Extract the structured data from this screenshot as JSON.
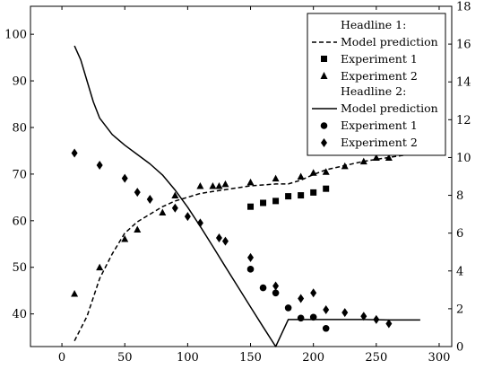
{
  "chart_data": {
    "type": "scatter",
    "title": "",
    "xlabel": "",
    "ylabel": "",
    "y2label": "",
    "xlim": [
      -25,
      310
    ],
    "ylim": [
      33,
      106
    ],
    "y2lim": [
      0,
      18
    ],
    "xticks": [
      0,
      50,
      100,
      150,
      200,
      250,
      300
    ],
    "yticks": [
      40,
      50,
      60,
      70,
      80,
      90,
      100
    ],
    "y2ticks": [
      0,
      2,
      4,
      6,
      8,
      10,
      12,
      14,
      16,
      18
    ],
    "grid": false,
    "legend_position": "top-right",
    "legend": [
      {
        "kind": "heading",
        "label": "Headline 1:"
      },
      {
        "kind": "dashed-line",
        "label": "Model prediction"
      },
      {
        "kind": "square",
        "label": "Experiment 1"
      },
      {
        "kind": "triangle",
        "label": "Experiment 2"
      },
      {
        "kind": "heading",
        "label": "Headline 2:"
      },
      {
        "kind": "solid-line",
        "label": "Model prediction"
      },
      {
        "kind": "circle",
        "label": "Experiment 1"
      },
      {
        "kind": "diamond",
        "label": "Experiment 2"
      }
    ],
    "series": [
      {
        "group": "Headline 1",
        "name": "Model prediction",
        "style": "dashed-line",
        "axis": "right",
        "x": [
          10,
          20,
          30,
          40,
          50,
          60,
          70,
          80,
          90,
          100,
          110,
          120,
          130,
          140,
          150,
          160,
          170,
          180,
          190,
          200,
          210,
          220,
          230,
          240,
          250,
          260,
          270,
          280,
          285
        ],
        "y": [
          0.3,
          1.6,
          3.6,
          4.9,
          6.0,
          6.6,
          7.0,
          7.4,
          7.7,
          7.9,
          8.1,
          8.2,
          8.3,
          8.4,
          8.5,
          8.55,
          8.6,
          8.6,
          8.8,
          9.1,
          9.35,
          9.5,
          9.65,
          9.8,
          9.9,
          10.0,
          10.1,
          10.2,
          10.25
        ]
      },
      {
        "group": "Headline 1",
        "name": "Experiment 1",
        "style": "square",
        "axis": "right",
        "x": [
          150,
          160,
          170,
          180,
          190,
          200,
          210
        ],
        "y": [
          7.4,
          7.6,
          7.7,
          7.95,
          8.0,
          8.15,
          8.35
        ]
      },
      {
        "group": "Headline 1",
        "name": "Experiment 2",
        "style": "triangle",
        "axis": "right",
        "x": [
          10,
          30,
          50,
          60,
          80,
          90,
          110,
          120,
          125,
          130,
          150,
          170,
          190,
          200,
          210,
          225,
          240,
          250,
          260
        ],
        "y": [
          2.8,
          4.2,
          5.7,
          6.2,
          7.1,
          8.0,
          8.5,
          8.5,
          8.5,
          8.6,
          8.7,
          8.9,
          9.0,
          9.2,
          9.25,
          9.55,
          9.8,
          10.0,
          10.0
        ]
      },
      {
        "group": "Headline 2",
        "name": "Model prediction",
        "style": "solid-line",
        "axis": "left",
        "x": [
          10,
          15,
          20,
          25,
          30,
          40,
          50,
          60,
          70,
          80,
          90,
          100,
          110,
          120,
          130,
          140,
          150,
          160,
          170,
          180,
          200,
          220,
          240,
          260,
          285
        ],
        "y": [
          97.5,
          94.5,
          90,
          85.5,
          82,
          78.5,
          76.2,
          74.2,
          72.2,
          69.8,
          66.6,
          62.9,
          58.8,
          54.5,
          50.1,
          45.8,
          41.5,
          37.2,
          33.0,
          38.8,
          38.8,
          38.8,
          38.8,
          38.7,
          38.7
        ]
      },
      {
        "group": "Headline 2",
        "name": "Experiment 1",
        "style": "circle",
        "axis": "left",
        "x": [
          150,
          160,
          170,
          180,
          190,
          200,
          210
        ],
        "y": [
          49.6,
          45.6,
          44.5,
          41.3,
          39.1,
          39.3,
          36.9
        ]
      },
      {
        "group": "Headline 2",
        "name": "Experiment 2",
        "style": "diamond",
        "axis": "left",
        "x": [
          10,
          30,
          50,
          60,
          70,
          90,
          100,
          110,
          125,
          130,
          150,
          170,
          190,
          200,
          210,
          225,
          240,
          250,
          260
        ],
        "y": [
          74.5,
          71.9,
          69.1,
          66.1,
          64.6,
          62.7,
          60.9,
          59.5,
          56.3,
          55.6,
          52.1,
          46.0,
          43.3,
          44.5,
          40.9,
          40.3,
          39.5,
          38.8,
          37.9
        ]
      }
    ]
  }
}
